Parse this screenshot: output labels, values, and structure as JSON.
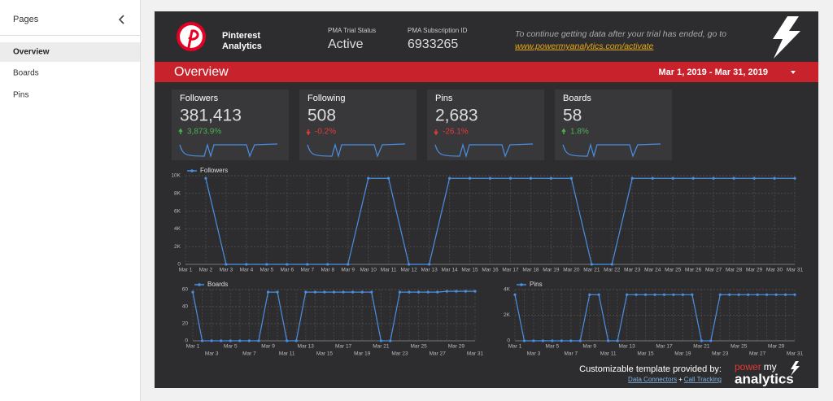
{
  "sidebar": {
    "title": "Pages",
    "items": [
      "Overview",
      "Boards",
      "Pins"
    ]
  },
  "header": {
    "brand": [
      "Pinterest",
      "Analytics"
    ],
    "status_label": "PMA Trial Status",
    "status": "Active",
    "id_label": "PMA Subscription ID",
    "id": "6933265",
    "notice": "To continue getting data after your trial has ended, go to",
    "link": "www.powermyanalytics.com/activate"
  },
  "banner": {
    "title": "Overview",
    "date_range": "Mar 1, 2019 - Mar 31, 2019"
  },
  "scorecards": [
    {
      "label": "Followers",
      "value": "381,413",
      "change": "3,873.9%",
      "direction": "up"
    },
    {
      "label": "Following",
      "value": "508",
      "change": "-0.2%",
      "direction": "down"
    },
    {
      "label": "Pins",
      "value": "2,683",
      "change": "-26.1%",
      "direction": "down"
    },
    {
      "label": "Boards",
      "value": "58",
      "change": "1.8%",
      "direction": "up"
    }
  ],
  "charts": [
    {
      "type": "line",
      "categories": [
        "Mar 1",
        "Mar 2",
        "Mar 3",
        "Mar 4",
        "Mar 5",
        "Mar 6",
        "Mar 7",
        "Mar 8",
        "Mar 9",
        "Mar 10",
        "Mar 11",
        "Mar 12",
        "Mar 13",
        "Mar 14",
        "Mar 15",
        "Mar 16",
        "Mar 17",
        "Mar 18",
        "Mar 19",
        "Mar 20",
        "Mar 21",
        "Mar 22",
        "Mar 23",
        "Mar 24",
        "Mar 25",
        "Mar 26",
        "Mar 27",
        "Mar 28",
        "Mar 29",
        "Mar 30",
        "Mar 31"
      ],
      "series": [
        {
          "name": "Followers",
          "color": "#4a90e2",
          "values": [
            null,
            9700,
            0,
            0,
            0,
            0,
            0,
            0,
            0,
            9700,
            9700,
            0,
            0,
            9700,
            9700,
            9700,
            9700,
            9700,
            9700,
            9700,
            0,
            0,
            9700,
            9700,
            9700,
            9700,
            9700,
            9700,
            9700,
            9700,
            9700
          ]
        }
      ],
      "ylim": [
        0,
        10000
      ],
      "yticks": [
        0,
        {
          "value": 2000,
          "label": "2K"
        },
        {
          "value": 4000,
          "label": "4K"
        },
        {
          "value": 6000,
          "label": "6K"
        },
        {
          "value": 8000,
          "label": "8K"
        },
        {
          "value": 10000,
          "label": "10K"
        }
      ],
      "grid": true
    },
    {
      "type": "line",
      "categories": [
        "Mar 1",
        null,
        "Mar 3",
        null,
        "Mar 5",
        null,
        "Mar 7",
        null,
        "Mar 9",
        null,
        "Mar 11",
        null,
        "Mar 13",
        null,
        "Mar 15",
        null,
        "Mar 17",
        null,
        "Mar 19",
        null,
        "Mar 21",
        null,
        "Mar 23",
        null,
        "Mar 25",
        null,
        "Mar 27",
        null,
        "Mar 29",
        null,
        "Mar 31"
      ],
      "series": [
        {
          "name": "Boards",
          "color": "#4a90e2",
          "values": [
            57,
            0,
            0,
            0,
            0,
            0,
            0,
            0,
            57,
            57,
            0,
            0,
            57,
            57,
            57,
            57,
            57,
            57,
            57,
            57,
            0,
            0,
            57,
            57,
            57,
            57,
            57,
            58,
            58,
            58,
            58
          ]
        }
      ],
      "ylim": [
        0,
        60
      ],
      "yticks": [
        0,
        20,
        40,
        60
      ],
      "grid": true
    },
    {
      "type": "line",
      "categories": [
        "Mar 1",
        null,
        "Mar 3",
        null,
        "Mar 5",
        null,
        "Mar 7",
        null,
        "Mar 9",
        null,
        "Mar 11",
        null,
        "Mar 13",
        null,
        "Mar 15",
        null,
        "Mar 17",
        null,
        "Mar 19",
        null,
        "Mar 21",
        null,
        "Mar 23",
        null,
        "Mar 25",
        null,
        "Mar 27",
        null,
        "Mar 29",
        null,
        "Mar 31"
      ],
      "series": [
        {
          "name": "Pins",
          "color": "#4a90e2",
          "values": [
            3600,
            0,
            0,
            0,
            0,
            0,
            0,
            0,
            3600,
            3600,
            0,
            0,
            3600,
            3600,
            3600,
            3600,
            3600,
            3600,
            3600,
            3600,
            0,
            0,
            3600,
            3600,
            3600,
            3600,
            3600,
            3600,
            3600,
            3600,
            3600
          ]
        }
      ],
      "ylim": [
        0,
        4000
      ],
      "yticks": [
        0,
        {
          "value": 2000,
          "label": "2K"
        },
        {
          "value": 4000,
          "label": "4K"
        }
      ],
      "grid": true
    }
  ],
  "footer": {
    "text": "Customizable template provided by:",
    "links": [
      "Data Connectors",
      "Call Tracking"
    ],
    "separator": "+",
    "logo": [
      "power",
      "my",
      "analytics"
    ]
  }
}
